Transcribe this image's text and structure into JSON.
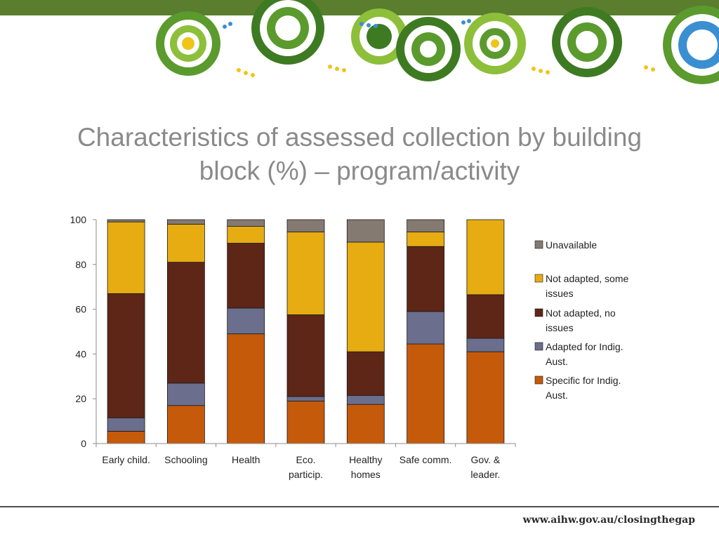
{
  "slide": {
    "title_line1": "Characteristics of assessed collection by building",
    "title_line2": "block (%) – program/activity",
    "footer_url": "www.aihw.gov.au/closingthegap"
  },
  "theme": {
    "band_color": "#5a7d2e",
    "banner_colors": [
      "#5b9a2d",
      "#8dbf3a",
      "#3e7a22",
      "#f0c419",
      "#3a8fd1",
      "#ffffff"
    ]
  },
  "chart_data": {
    "type": "bar",
    "stacked": true,
    "categories": [
      [
        "Early child."
      ],
      [
        "Schooling"
      ],
      [
        "Health"
      ],
      [
        "Eco.",
        "particip."
      ],
      [
        "Healthy",
        "homes"
      ],
      [
        "Safe comm."
      ],
      [
        "Gov. &",
        "leader."
      ]
    ],
    "ylim": [
      0,
      100
    ],
    "yticks": [
      0,
      20,
      40,
      60,
      80,
      100
    ],
    "legend_position": "right",
    "series": [
      {
        "name": "Specific for Indig. Aust.",
        "color": "#c55a0b",
        "values": [
          5.5,
          17,
          49,
          19,
          17.5,
          44.5,
          41
        ]
      },
      {
        "name": "Adapted for Indig. Aust.",
        "color": "#6b6e8c",
        "values": [
          6,
          10,
          11.5,
          2,
          4,
          14.5,
          6
        ]
      },
      {
        "name": "Not adapted, no issues",
        "color": "#5e2617",
        "values": [
          55.5,
          54,
          29,
          36.5,
          19.5,
          29,
          19.5
        ]
      },
      {
        "name": "Not adapted, some issues",
        "color": "#e6ac12",
        "values": [
          32,
          17,
          7.5,
          37,
          49,
          6.5,
          33.5
        ]
      },
      {
        "name": "Unavailable",
        "color": "#857a72",
        "values": [
          1,
          2,
          3,
          5.5,
          10,
          5.5,
          0
        ]
      }
    ],
    "legend_order": [
      [
        "Unavailable"
      ],
      [
        "Not adapted, some",
        "issues"
      ],
      [
        "Not adapted, no",
        "issues"
      ],
      [
        "Adapted for Indig.",
        "Aust."
      ],
      [
        "Specific for Indig.",
        "Aust."
      ]
    ],
    "legend_colors": [
      "#857a72",
      "#e6ac12",
      "#5e2617",
      "#6b6e8c",
      "#c55a0b"
    ]
  }
}
